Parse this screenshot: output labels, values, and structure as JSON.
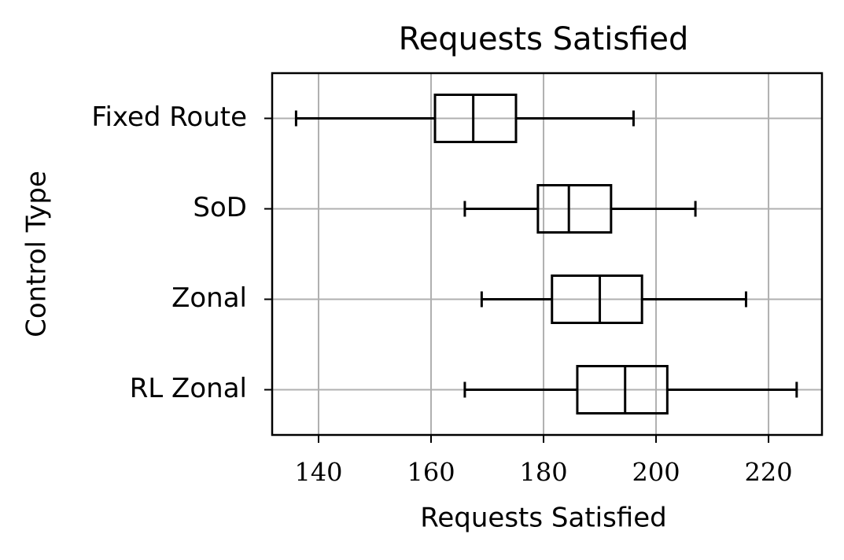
{
  "chart_data": {
    "type": "boxplot",
    "orientation": "horizontal",
    "title": "Requests Satisfied",
    "x_label": "Requests Satisfied",
    "y_label": "Control Type",
    "categories": [
      "Fixed Route",
      "SoD",
      "Zonal",
      "RL Zonal"
    ],
    "boxes": [
      {
        "min": 136,
        "q1": 160.7,
        "median": 167.5,
        "q3": 175.1,
        "max": 196
      },
      {
        "min": 166,
        "q1": 179,
        "median": 184.5,
        "q3": 192,
        "max": 207
      },
      {
        "min": 169,
        "q1": 181.5,
        "median": 190,
        "q3": 197.5,
        "max": 216
      },
      {
        "min": 166,
        "q1": 186,
        "median": 194.5,
        "q3": 202,
        "max": 225
      }
    ],
    "color": "#000000",
    "xlim": [
      131.75,
      229.5
    ],
    "xticks": [
      140,
      160,
      180,
      200,
      220
    ],
    "grid": true
  }
}
